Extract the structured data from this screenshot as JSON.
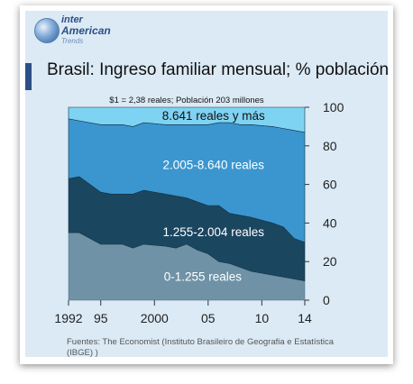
{
  "logo": {
    "line1": "inter",
    "line2": "American",
    "line3": "Trends"
  },
  "title": "Brasil: Ingreso familiar mensual; % población",
  "source": "Fuentes: The Economist (Instituto Brasileiro de Geografia e Estatística (IBGE) )",
  "colors": {
    "band_top": "#7fd3f2",
    "band_2": "#3b96cf",
    "band_3": "#1b4660",
    "band_bottom": "#6f92a6",
    "plot_bg": "#ffffff"
  },
  "chart_data": {
    "type": "area",
    "stacked": true,
    "subtitle": "$1 = 2,38 reales; Población 203 millones",
    "x": [
      1992,
      1993,
      1995,
      1996,
      1997,
      1998,
      1999,
      2001,
      2002,
      2003,
      2004,
      2005,
      2006,
      2007,
      2008,
      2009,
      2011,
      2012,
      2013,
      2014
    ],
    "x_ticks": [
      "1992",
      "95",
      "2000",
      "05",
      "10",
      "14"
    ],
    "x_tick_values": [
      1992,
      1995,
      2000,
      2005,
      2010,
      2014
    ],
    "ylim": [
      0,
      100
    ],
    "y_ticks": [
      "0",
      "20",
      "40",
      "60",
      "80",
      "100"
    ],
    "y_axis_position": "right",
    "grid": false,
    "series": [
      {
        "name": "0-1.255 reales",
        "values": [
          35,
          35,
          29,
          29,
          29,
          27,
          29,
          28,
          27,
          29,
          26,
          24,
          20,
          19,
          17,
          15,
          13,
          12,
          11,
          10
        ]
      },
      {
        "name": "1.255-2.004 reales",
        "values": [
          28,
          29,
          27,
          26,
          26,
          28,
          28,
          27,
          27,
          24,
          25,
          25,
          29,
          26,
          27,
          28,
          27,
          26,
          21,
          20
        ]
      },
      {
        "name": "2.005-8.640 reales",
        "values": [
          31,
          29,
          35,
          36,
          36,
          35,
          35,
          36,
          37,
          38,
          40,
          42,
          43,
          47,
          47,
          48,
          50,
          51,
          56,
          57
        ]
      },
      {
        "name": "8.641 reales y más",
        "values": [
          6,
          7,
          9,
          9,
          9,
          10,
          8,
          9,
          9,
          9,
          9,
          9,
          8,
          8,
          9,
          9,
          10,
          11,
          12,
          13
        ]
      }
    ]
  }
}
